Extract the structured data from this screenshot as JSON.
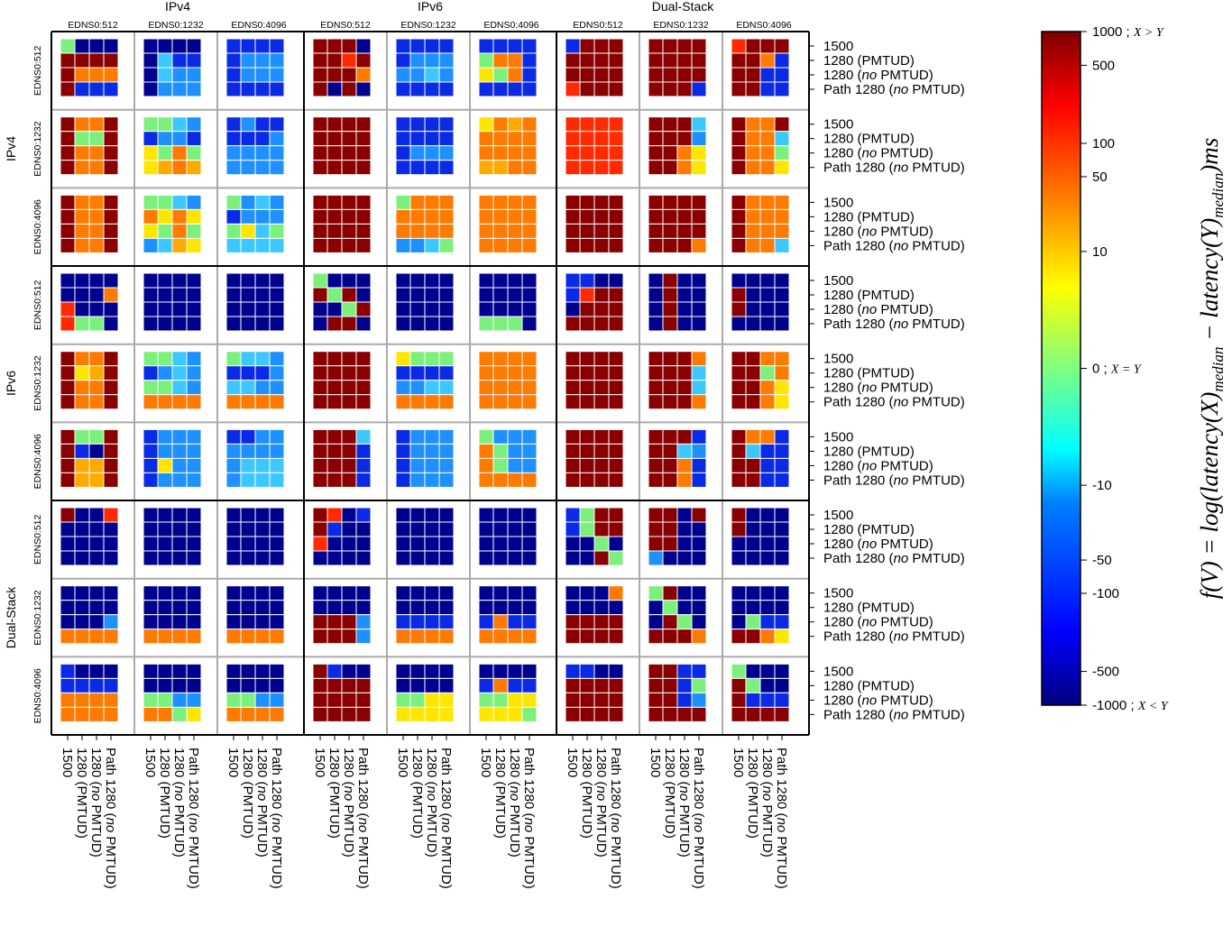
{
  "chart_data": {
    "type": "heatmap",
    "title": "",
    "group_labels": [
      "IPv4",
      "IPv6",
      "Dual-Stack"
    ],
    "edns_labels": [
      "EDNS0:512",
      "EDNS0:1232",
      "EDNS0:4096"
    ],
    "mtu_labels": [
      [
        "1500"
      ],
      [
        "1280 (PMTUD)"
      ],
      [
        "1280 (",
        "no",
        " PMTUD)"
      ],
      [
        "Path 1280 (",
        "no",
        " PMTUD)"
      ]
    ],
    "colorbar": {
      "ticks": [
        {
          "value": 1000,
          "label": "1000 ; ",
          "math": "X > Y"
        },
        {
          "value": 500,
          "label": "500",
          "math": ""
        },
        {
          "value": 100,
          "label": "100",
          "math": ""
        },
        {
          "value": 50,
          "label": "50",
          "math": ""
        },
        {
          "value": 10,
          "label": "10",
          "math": ""
        },
        {
          "value": 0,
          "label": "0 ; ",
          "math": "X = Y"
        },
        {
          "value": -10,
          "label": "-10",
          "math": ""
        },
        {
          "value": -50,
          "label": "-50",
          "math": ""
        },
        {
          "value": -100,
          "label": "-100",
          "math": ""
        },
        {
          "value": -500,
          "label": "-500",
          "math": ""
        },
        {
          "value": -1000,
          "label": "-1000 ; ",
          "math": "X < Y"
        }
      ],
      "range": [
        -1000,
        1000
      ],
      "scale": "symlog"
    },
    "axis_label_text": "f(V) = log(latency(X)_median − latency(Y)_median) ms",
    "axis_label": [
      {
        "t": "f",
        "s": "n"
      },
      {
        "t": "(",
        "s": "n"
      },
      {
        "t": "V",
        "s": "n"
      },
      {
        "t": ") = ",
        "s": "n"
      },
      {
        "t": "log",
        "s": "n"
      },
      {
        "t": "(",
        "s": "n"
      },
      {
        "t": "latency",
        "s": "n"
      },
      {
        "t": "(",
        "s": "n"
      },
      {
        "t": "X",
        "s": "n"
      },
      {
        "t": ")",
        "s": "n"
      },
      {
        "t": "median",
        "s": "sub"
      },
      {
        "t": " − ",
        "s": "n"
      },
      {
        "t": "latency",
        "s": "n"
      },
      {
        "t": "(",
        "s": "n"
      },
      {
        "t": "Y",
        "s": "n"
      },
      {
        "t": ")",
        "s": "n"
      },
      {
        "t": "median",
        "s": "sub"
      },
      {
        "t": ")",
        "s": "n"
      },
      {
        "t": "ms",
        "s": "n"
      }
    ],
    "cells_note": "levels: 9=dark red(~1000), 8=red(~500), 7=orange(~50), 6=yellow-orange(~20), 5=yellow(~10), 4=green(0), 3=cyan(-5), 2=light blue(-10), 1=blue(-100), 0=dark blue(-1000); rows=outer group/edns block row, cols=outer block col",
    "level_values": [
      -1000,
      -100,
      -10,
      -5,
      0,
      10,
      20,
      50,
      500,
      1000
    ],
    "cells": [
      [
        [
          "4000",
          "9999",
          "9777",
          "9111"
        ],
        [
          "0000",
          "0311",
          "0322",
          "0222"
        ],
        [
          "1111",
          "1222",
          "1222",
          "1111"
        ],
        [
          "9990",
          "9989",
          "9997",
          "9090"
        ],
        [
          "1111",
          "1222",
          "2232",
          "1111"
        ],
        [
          "1111",
          "4771",
          "5471",
          "1111"
        ],
        [
          "1999",
          "9999",
          "9999",
          "8999"
        ],
        [
          "9999",
          "9999",
          "9999",
          "9991"
        ],
        [
          "8999",
          "9971",
          "9911",
          "9911"
        ]
      ],
      [
        [
          "9779",
          "9449",
          "9779",
          "9779"
        ],
        [
          "4432",
          "1221",
          "5474",
          "5676"
        ],
        [
          "1211",
          "1112",
          "2222",
          "2222"
        ],
        [
          "9999",
          "9999",
          "9999",
          "9999"
        ],
        [
          "1111",
          "1111",
          "1222",
          "1111"
        ],
        [
          "5767",
          "7777",
          "7777",
          "6677"
        ],
        [
          "8888",
          "8888",
          "8888",
          "8888"
        ],
        [
          "9993",
          "9992",
          "9975",
          "9975"
        ],
        [
          "9779",
          "9773",
          "9774",
          "9775"
        ]
      ],
      [
        [
          "9779",
          "9779",
          "9779",
          "9779"
        ],
        [
          "4432",
          "7575",
          "5474",
          "2365"
        ],
        [
          "4232",
          "1222",
          "4534",
          "3333"
        ],
        [
          "9999",
          "9999",
          "9999",
          "9999"
        ],
        [
          "4777",
          "7777",
          "7777",
          "2234"
        ],
        [
          "7777",
          "7777",
          "7777",
          "7777"
        ],
        [
          "9999",
          "9999",
          "9999",
          "9999"
        ],
        [
          "9999",
          "9999",
          "9999",
          "9997"
        ],
        [
          "9777",
          "9777",
          "9777",
          "9773"
        ]
      ],
      [
        [
          "0000",
          "0007",
          "8000",
          "8440"
        ],
        [
          "0000",
          "0000",
          "0000",
          "0000"
        ],
        [
          "0000",
          "0000",
          "0000",
          "0000"
        ],
        [
          "4000",
          "9490",
          "0049",
          "0990"
        ],
        [
          "0000",
          "0000",
          "0000",
          "0000"
        ],
        [
          "0000",
          "0000",
          "0000",
          "4440"
        ],
        [
          "1100",
          "1899",
          "0999",
          "9999"
        ],
        [
          "0900",
          "0900",
          "0900",
          "0900"
        ],
        [
          "0000",
          "9000",
          "9000",
          "0000"
        ]
      ],
      [
        [
          "9779",
          "9569",
          "9779",
          "9779"
        ],
        [
          "4432",
          "1232",
          "4432",
          "7777"
        ],
        [
          "4332",
          "1112",
          "3322",
          "7777"
        ],
        [
          "9999",
          "9999",
          "9999",
          "9999"
        ],
        [
          "5444",
          "1111",
          "2233",
          "7777"
        ],
        [
          "7777",
          "7777",
          "7777",
          "7777"
        ],
        [
          "9999",
          "9999",
          "9999",
          "9999"
        ],
        [
          "9997",
          "9993",
          "9993",
          "9997"
        ],
        [
          "9977",
          "9947",
          "9975",
          "9975"
        ]
      ],
      [
        [
          "9449",
          "9109",
          "9669",
          "9669"
        ],
        [
          "1222",
          "1222",
          "1522",
          "1222"
        ],
        [
          "1122",
          "2222",
          "2333",
          "2333"
        ],
        [
          "9993",
          "9991",
          "9991",
          "9991"
        ],
        [
          "1222",
          "1222",
          "1222",
          "1222"
        ],
        [
          "4222",
          "7422",
          "7422",
          "7777"
        ],
        [
          "9999",
          "9999",
          "9999",
          "9999"
        ],
        [
          "9991",
          "9932",
          "9971",
          "9971"
        ],
        [
          "9771",
          "9311",
          "9911",
          "9911"
        ]
      ],
      [
        [
          "9008",
          "0000",
          "0000",
          "0000"
        ],
        [
          "0000",
          "0000",
          "0000",
          "0000"
        ],
        [
          "0000",
          "0000",
          "0000",
          "0000"
        ],
        [
          "9801",
          "9100",
          "8000",
          "0000"
        ],
        [
          "0000",
          "0000",
          "0000",
          "0000"
        ],
        [
          "0000",
          "0000",
          "0000",
          "0000"
        ],
        [
          "1499",
          "1499",
          "0040",
          "0094"
        ],
        [
          "9909",
          "9900",
          "9900",
          "2000"
        ],
        [
          "9000",
          "9000",
          "0000",
          "0000"
        ]
      ],
      [
        [
          "0000",
          "0000",
          "0002",
          "7777"
        ],
        [
          "0000",
          "0000",
          "0000",
          "7777"
        ],
        [
          "0000",
          "0000",
          "0000",
          "7777"
        ],
        [
          "0000",
          "0000",
          "9992",
          "9992"
        ],
        [
          "0000",
          "0000",
          "1111",
          "7777"
        ],
        [
          "0000",
          "0000",
          "1711",
          "7777"
        ],
        [
          "0007",
          "0000",
          "9999",
          "9999"
        ],
        [
          "4900",
          "0400",
          "0940",
          "9997"
        ],
        [
          "0000",
          "0000",
          "0411",
          "9975"
        ]
      ],
      [
        [
          "1000",
          "1111",
          "7777",
          "7777"
        ],
        [
          "0000",
          "0000",
          "4422",
          "7745"
        ],
        [
          "0000",
          "0000",
          "4422",
          "7777"
        ],
        [
          "9100",
          "9999",
          "9999",
          "9999"
        ],
        [
          "0000",
          "0000",
          "4455",
          "5555"
        ],
        [
          "0000",
          "1711",
          "4455",
          "5554"
        ],
        [
          "1100",
          "9999",
          "9999",
          "9999"
        ],
        [
          "9911",
          "9914",
          "9912",
          "9999"
        ],
        [
          "4000",
          "9400",
          "9111",
          "9999"
        ]
      ]
    ]
  }
}
